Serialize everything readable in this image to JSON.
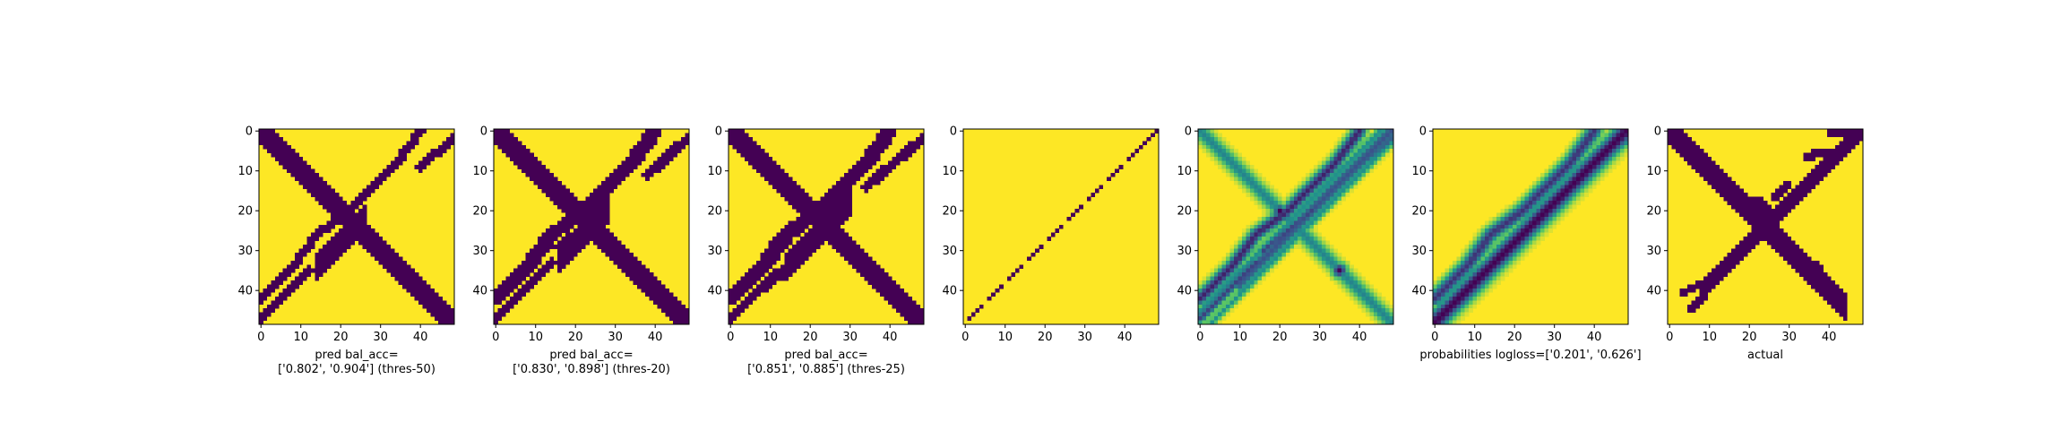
{
  "colors": {
    "low": "#440154",
    "high": "#fde725",
    "colormap": "viridis"
  },
  "chart_data": [
    {
      "type": "heatmap",
      "variant": "binary",
      "grid_size": 49,
      "xlabel_lines": [
        "pred bal_acc=",
        "['0.802', '0.904'] (thres-50)"
      ],
      "xticks": [
        0,
        10,
        20,
        30,
        40
      ],
      "yticks": [
        0,
        10,
        20,
        30,
        40
      ],
      "xlim": [
        0,
        48
      ],
      "ylim": [
        48,
        0
      ],
      "bands": [
        {
          "kind": "anti",
          "c": 0,
          "width": 2.2
        },
        {
          "kind": "main",
          "c": 0,
          "width": 2.5,
          "range": [
            14,
            26
          ]
        },
        {
          "kind": "curve",
          "points": [
            [
              0,
              42
            ],
            [
              8,
              34
            ],
            [
              14,
              26
            ],
            [
              22,
              20
            ],
            [
              28,
              14
            ],
            [
              34,
              8
            ],
            [
              40,
              0
            ]
          ],
          "width": 1.2
        },
        {
          "kind": "curve",
          "points": [
            [
              0,
              47
            ],
            [
              8,
              39
            ],
            [
              12,
              35
            ]
          ],
          "width": 1.1
        },
        {
          "kind": "curve",
          "points": [
            [
              18,
              29
            ],
            [
              24,
              23
            ]
          ],
          "width": 1.1
        },
        {
          "kind": "curve",
          "points": [
            [
              40,
              9
            ],
            [
              48,
              2
            ]
          ],
          "width": 1.1
        }
      ]
    },
    {
      "type": "heatmap",
      "variant": "binary",
      "grid_size": 49,
      "xlabel_lines": [
        "pred bal_acc=",
        "['0.830', '0.898'] (thres-20)"
      ],
      "xticks": [
        0,
        10,
        20,
        30,
        40
      ],
      "yticks": [
        0,
        10,
        20,
        30,
        40
      ],
      "xlim": [
        0,
        48
      ],
      "ylim": [
        48,
        0
      ],
      "bands": [
        {
          "kind": "anti",
          "c": 0,
          "width": 2.5
        },
        {
          "kind": "main",
          "c": 0,
          "width": 2.6,
          "range": [
            16,
            28
          ]
        },
        {
          "kind": "curve",
          "points": [
            [
              0,
              42
            ],
            [
              8,
              34
            ],
            [
              14,
              26
            ],
            [
              22,
              20
            ],
            [
              28,
              14
            ],
            [
              34,
              8
            ],
            [
              40,
              0
            ]
          ],
          "width": 1.8
        },
        {
          "kind": "curve",
          "points": [
            [
              0,
              47
            ],
            [
              8,
              39
            ],
            [
              14,
              33
            ]
          ],
          "width": 1.3
        },
        {
          "kind": "curve",
          "points": [
            [
              16,
              29
            ],
            [
              26,
              21
            ]
          ],
          "width": 1.2
        },
        {
          "kind": "curve",
          "points": [
            [
              38,
              11
            ],
            [
              48,
              2
            ]
          ],
          "width": 1.3
        }
      ]
    },
    {
      "type": "heatmap",
      "variant": "binary",
      "grid_size": 49,
      "xlabel_lines": [
        "pred bal_acc=",
        "['0.851', '0.885'] (thres-25)"
      ],
      "xticks": [
        0,
        10,
        20,
        30,
        40
      ],
      "yticks": [
        0,
        10,
        20,
        30,
        40
      ],
      "xlim": [
        0,
        48
      ],
      "ylim": [
        48,
        0
      ],
      "bands": [
        {
          "kind": "anti",
          "c": 0,
          "width": 2.6
        },
        {
          "kind": "main",
          "c": 0,
          "width": 2.8,
          "range": [
            14,
            30
          ]
        },
        {
          "kind": "curve",
          "points": [
            [
              0,
              42
            ],
            [
              8,
              34
            ],
            [
              14,
              26
            ],
            [
              22,
              20
            ],
            [
              28,
              14
            ],
            [
              34,
              8
            ],
            [
              40,
              0
            ]
          ],
          "width": 2.0
        },
        {
          "kind": "curve",
          "points": [
            [
              0,
              47
            ],
            [
              8,
              39
            ],
            [
              16,
              33
            ]
          ],
          "width": 1.4
        },
        {
          "kind": "curve",
          "points": [
            [
              16,
              30
            ],
            [
              28,
              20
            ]
          ],
          "width": 1.3
        },
        {
          "kind": "curve",
          "points": [
            [
              34,
              14
            ],
            [
              48,
              2
            ]
          ],
          "width": 1.3
        }
      ]
    },
    {
      "type": "heatmap",
      "variant": "binary",
      "grid_size": 49,
      "xlabel_lines": [],
      "xticks": [
        0,
        10,
        20,
        30,
        40
      ],
      "yticks": [
        0,
        10,
        20,
        30,
        40
      ],
      "xlim": [
        0,
        48
      ],
      "ylim": [
        48,
        0
      ],
      "bands": [
        {
          "kind": "dotted",
          "points": [
            [
              0,
              48
            ],
            [
              48,
              0
            ]
          ],
          "step": 1
        }
      ]
    },
    {
      "type": "heatmap",
      "variant": "continuous",
      "grid_size": 49,
      "xlabel_lines": [],
      "xticks": [
        0,
        10,
        20,
        30,
        40
      ],
      "yticks": [
        0,
        10,
        20,
        30,
        40
      ],
      "xlim": [
        0,
        48
      ],
      "ylim": [
        48,
        0
      ],
      "bands": [
        {
          "kind": "anti",
          "c": 0,
          "width": 2.0,
          "strength": 0.55
        },
        {
          "kind": "main",
          "c": 0,
          "width": 2.2,
          "strength": 0.75,
          "range": [
            10,
            48
          ]
        },
        {
          "kind": "main",
          "c": 3,
          "width": 1.0,
          "strength": 0.5
        },
        {
          "kind": "main",
          "c": -3,
          "width": 1.0,
          "strength": 0.5
        },
        {
          "kind": "curve",
          "points": [
            [
              0,
              42
            ],
            [
              8,
              34
            ],
            [
              14,
              26
            ],
            [
              22,
              20
            ],
            [
              28,
              14
            ],
            [
              34,
              8
            ],
            [
              40,
              0
            ]
          ],
          "width": 1.8,
          "strength": 0.9
        },
        {
          "kind": "curve",
          "points": [
            [
              0,
              47
            ],
            [
              8,
              39
            ],
            [
              14,
              33
            ]
          ],
          "width": 1.4,
          "strength": 0.8
        },
        {
          "kind": "curve",
          "points": [
            [
              16,
              30
            ],
            [
              28,
              20
            ]
          ],
          "width": 1.3,
          "strength": 0.8
        },
        {
          "kind": "curve",
          "points": [
            [
              32,
              15
            ],
            [
              48,
              2
            ]
          ],
          "width": 1.4,
          "strength": 0.7
        },
        {
          "kind": "blob",
          "x": 20,
          "y": 20,
          "r": 1.6,
          "strength": 1.0
        },
        {
          "kind": "blob",
          "x": 35,
          "y": 35,
          "r": 2.0,
          "strength": 1.0
        }
      ]
    },
    {
      "type": "heatmap",
      "variant": "continuous",
      "grid_size": 49,
      "xlabel_lines": [
        "probabilities logloss=['0.201', '0.626']"
      ],
      "xticks": [
        0,
        10,
        20,
        30,
        40
      ],
      "yticks": [
        0,
        10,
        20,
        30,
        40
      ],
      "xlim": [
        0,
        48
      ],
      "ylim": [
        48,
        0
      ],
      "bands": [
        {
          "kind": "main",
          "c": 0,
          "width": 2.6,
          "strength": 1.0
        },
        {
          "kind": "curve",
          "points": [
            [
              0,
              42
            ],
            [
              8,
              34
            ],
            [
              14,
              26
            ],
            [
              22,
              20
            ],
            [
              28,
              14
            ],
            [
              34,
              8
            ],
            [
              40,
              0
            ]
          ],
          "width": 2.0,
          "strength": 0.85
        },
        {
          "kind": "curve",
          "points": [
            [
              0,
              47
            ],
            [
              8,
              39
            ],
            [
              16,
              33
            ]
          ],
          "width": 1.6,
          "strength": 0.7
        },
        {
          "kind": "curve",
          "points": [
            [
              16,
              30
            ],
            [
              28,
              20
            ]
          ],
          "width": 1.4,
          "strength": 0.7
        },
        {
          "kind": "curve",
          "points": [
            [
              34,
              14
            ],
            [
              48,
              2
            ]
          ],
          "width": 1.5,
          "strength": 0.7
        }
      ]
    },
    {
      "type": "heatmap",
      "variant": "binary",
      "grid_size": 49,
      "xlabel_lines": [
        "actual"
      ],
      "xticks": [
        0,
        10,
        20,
        30,
        40
      ],
      "yticks": [
        0,
        10,
        20,
        30,
        40
      ],
      "xlim": [
        0,
        48
      ],
      "ylim": [
        48,
        0
      ],
      "bands": [
        {
          "kind": "anti",
          "c": 0,
          "width": 2.2,
          "range": [
            0,
            44
          ]
        },
        {
          "kind": "main",
          "c": 0,
          "width": 2.0,
          "range": [
            8,
            48
          ]
        },
        {
          "kind": "blob",
          "x": 22,
          "y": 20,
          "r": 3.2
        },
        {
          "kind": "blob",
          "x": 36,
          "y": 35,
          "r": 2.8
        },
        {
          "kind": "blob",
          "x": 12,
          "y": 36,
          "r": 2.0
        },
        {
          "kind": "blob",
          "x": 40,
          "y": 6,
          "r": 1.8
        },
        {
          "kind": "curve",
          "points": [
            [
              40,
              1
            ],
            [
              47,
              0
            ]
          ],
          "width": 1.0
        },
        {
          "kind": "curve",
          "points": [
            [
              34,
              7
            ],
            [
              38,
              5
            ]
          ],
          "width": 0.9
        },
        {
          "kind": "curve",
          "points": [
            [
              26,
              17
            ],
            [
              30,
              13
            ]
          ],
          "width": 0.9
        },
        {
          "kind": "curve",
          "points": [
            [
              3,
              41
            ],
            [
              8,
              38
            ]
          ],
          "width": 1.0
        },
        {
          "kind": "curve",
          "points": [
            [
              5,
              45
            ],
            [
              9,
              41
            ]
          ],
          "width": 0.8
        }
      ]
    }
  ]
}
